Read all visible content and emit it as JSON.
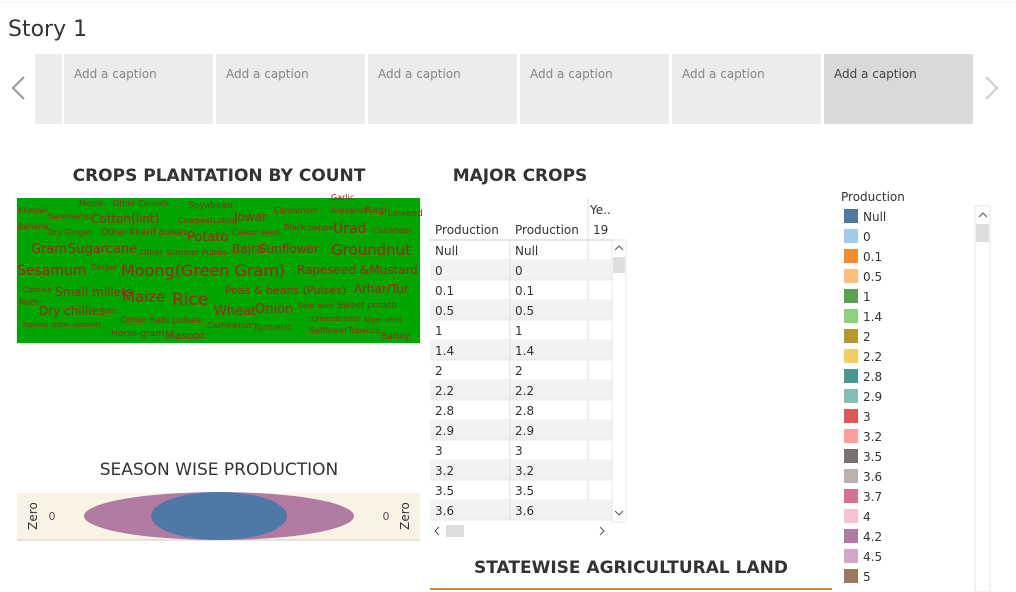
{
  "header": {
    "title": "Story 1",
    "captions": [
      "Add a caption",
      "Add a caption",
      "Add a caption",
      "Add a caption",
      "Add a caption",
      "Add a caption"
    ]
  },
  "word_cloud": {
    "title": "CROPS PLANTATION BY COUNT",
    "words": [
      "Khesari",
      "Mesta",
      "Other Cereals",
      "Soyabean",
      "Garlic",
      "Sannhamp",
      "Cotton(lint)",
      "Cowpea(Lobia)",
      "Jowar",
      "Cardamom",
      "Arecanut",
      "Ragi",
      "Linseed",
      "Banana",
      "Dry Ginger",
      "Other Kharif pulses",
      "Potato",
      "Castor seed",
      "Black pepper",
      "Urad",
      "Coriander",
      "Gram",
      "Sugarcane",
      "Other Summer Pulses",
      "Bajra",
      "Sunflower",
      "Groundnut",
      "Sesamum",
      "Ginger",
      "Moong(Green Gram)",
      "Rapeseed &Mustard",
      "Coconut",
      "Small millets",
      "Arhar/Tur",
      "Maize",
      "Rice",
      "Peas & beans (Pulses)",
      "Moth",
      "Dry chillies",
      "Jute",
      "Guar seed",
      "Sweet potato",
      "Wheat",
      "Onion",
      "Other Rabi pulses",
      "Oilseeds total",
      "Niger seed",
      "Tapioca",
      "other oilseeds",
      "Cashewnut",
      "Turmeric",
      "Horse-gram",
      "Masoor",
      "Safflower",
      "Tobacco",
      "Barley"
    ]
  },
  "major_crops": {
    "title": "MAJOR CROPS",
    "headers": [
      "Production",
      "Production",
      "Ye.."
    ],
    "subheader": "19",
    "rows": [
      [
        "Null",
        "Null"
      ],
      [
        "0",
        "0"
      ],
      [
        "0.1",
        "0.1"
      ],
      [
        "0.5",
        "0.5"
      ],
      [
        "1",
        "1"
      ],
      [
        "1.4",
        "1.4"
      ],
      [
        "2",
        "2"
      ],
      [
        "2.2",
        "2.2"
      ],
      [
        "2.8",
        "2.8"
      ],
      [
        "2.9",
        "2.9"
      ],
      [
        "3",
        "3"
      ],
      [
        "3.2",
        "3.2"
      ],
      [
        "3.5",
        "3.5"
      ],
      [
        "3.6",
        "3.6"
      ]
    ]
  },
  "season": {
    "title": "SEASON WISE PRODUCTION",
    "left_label": "Zero",
    "left_value": "0",
    "right_value": "0",
    "right_label": "Zero",
    "colors": [
      "#b07aa1",
      "#4e79a7"
    ]
  },
  "legend": {
    "title": "Production",
    "items": [
      {
        "label": "Null",
        "color": "#4e79a7"
      },
      {
        "label": "0",
        "color": "#a0cbe8"
      },
      {
        "label": "0.1",
        "color": "#f28e2b"
      },
      {
        "label": "0.5",
        "color": "#ffbe7d"
      },
      {
        "label": "1",
        "color": "#59a14f"
      },
      {
        "label": "1.4",
        "color": "#8cd17d"
      },
      {
        "label": "2",
        "color": "#b6992d"
      },
      {
        "label": "2.2",
        "color": "#f1ce63"
      },
      {
        "label": "2.8",
        "color": "#499894"
      },
      {
        "label": "2.9",
        "color": "#86bcb6"
      },
      {
        "label": "3",
        "color": "#e15759"
      },
      {
        "label": "3.2",
        "color": "#ff9d9a"
      },
      {
        "label": "3.5",
        "color": "#79706e"
      },
      {
        "label": "3.6",
        "color": "#bab0ac"
      },
      {
        "label": "3.7",
        "color": "#d37295"
      },
      {
        "label": "4",
        "color": "#fabfd2"
      },
      {
        "label": "4.2",
        "color": "#b07aa1"
      },
      {
        "label": "4.5",
        "color": "#d4a6c8"
      },
      {
        "label": "5",
        "color": "#9d7660"
      }
    ]
  },
  "statewise": {
    "title": "STATEWISE AGRICULTURAL LAND"
  }
}
